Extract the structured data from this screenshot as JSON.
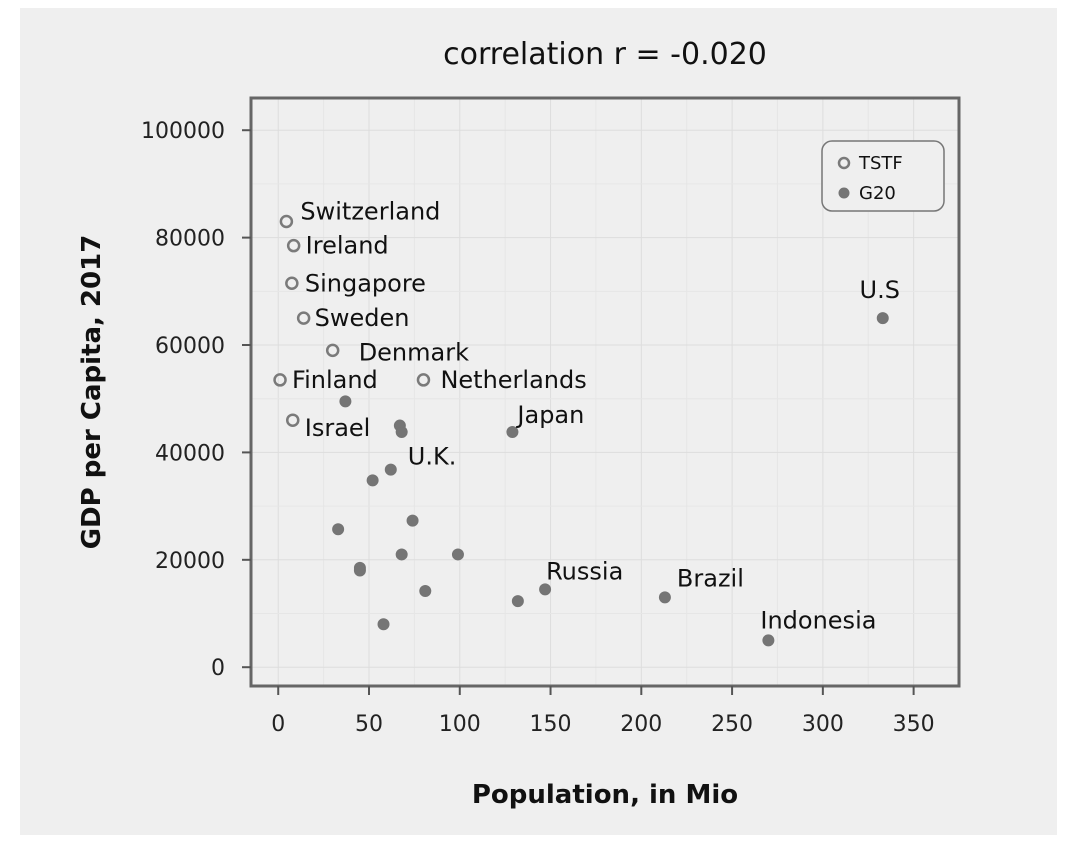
{
  "chart_data": {
    "type": "scatter",
    "title": "correlation r = -0.020",
    "xlabel": "Population, in Mio",
    "ylabel": "GDP per Capita, 2017",
    "xlim": [
      -15,
      375
    ],
    "ylim": [
      -3500,
      106000
    ],
    "xticks": [
      0,
      50,
      100,
      150,
      200,
      250,
      300,
      350
    ],
    "yticks": [
      0,
      20000,
      40000,
      60000,
      80000,
      100000
    ],
    "grid": true,
    "legend": {
      "placement": "top-right",
      "entries": [
        "TSTF",
        "G20"
      ]
    },
    "series": [
      {
        "name": "TSTF",
        "marker": "open-circle",
        "color": "#7a7a7a",
        "points": [
          {
            "label": "Switzerland",
            "x": 4.5,
            "y": 83000
          },
          {
            "label": "Ireland",
            "x": 8.5,
            "y": 78500
          },
          {
            "label": "Singapore",
            "x": 7.5,
            "y": 71500
          },
          {
            "label": "Sweden",
            "x": 14,
            "y": 65000
          },
          {
            "label": "Denmark",
            "x": 30,
            "y": 59000
          },
          {
            "label": "Finland",
            "x": 1,
            "y": 53500
          },
          {
            "label": "Netherlands",
            "x": 80,
            "y": 53500
          },
          {
            "label": "Israel",
            "x": 8,
            "y": 46000
          }
        ]
      },
      {
        "name": "G20",
        "marker": "filled-circle",
        "color": "#757575",
        "points": [
          {
            "label": "U.S",
            "x": 333,
            "y": 65000
          },
          {
            "label": "",
            "x": 37,
            "y": 49500
          },
          {
            "label": "",
            "x": 67,
            "y": 45000
          },
          {
            "label": "",
            "x": 68,
            "y": 43800
          },
          {
            "label": "Japan",
            "x": 129,
            "y": 43800
          },
          {
            "label": "U.K.",
            "x": 62,
            "y": 36800
          },
          {
            "label": "",
            "x": 52,
            "y": 34800
          },
          {
            "label": "",
            "x": 74,
            "y": 27300
          },
          {
            "label": "",
            "x": 33,
            "y": 25700
          },
          {
            "label": "",
            "x": 68,
            "y": 21000
          },
          {
            "label": "",
            "x": 99,
            "y": 21000
          },
          {
            "label": "",
            "x": 45,
            "y": 18500
          },
          {
            "label": "",
            "x": 45,
            "y": 18000
          },
          {
            "label": "Russia",
            "x": 147,
            "y": 14500
          },
          {
            "label": "",
            "x": 81,
            "y": 14200
          },
          {
            "label": "Brazil",
            "x": 213,
            "y": 13000
          },
          {
            "label": "",
            "x": 132,
            "y": 12300
          },
          {
            "label": "",
            "x": 58,
            "y": 8000
          },
          {
            "label": "Indonesia",
            "x": 270,
            "y": 5000
          }
        ]
      }
    ]
  }
}
